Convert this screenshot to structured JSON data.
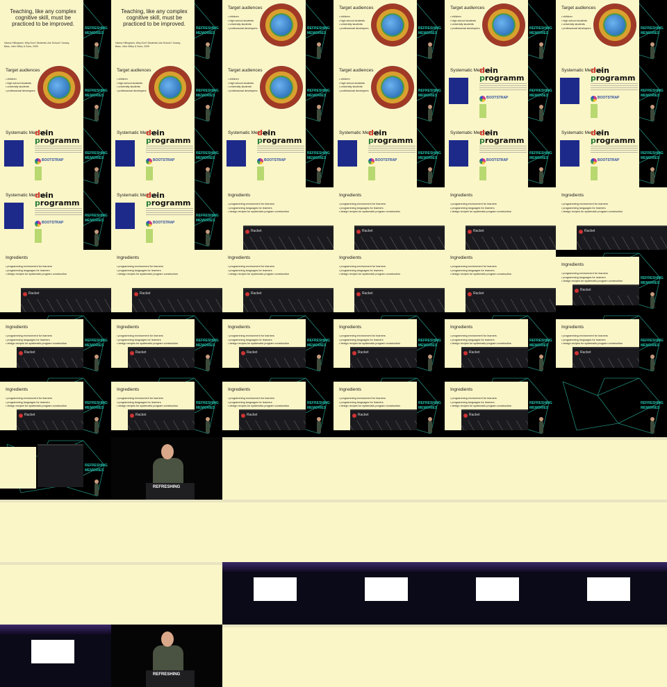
{
  "quote": {
    "text": "Teaching, like any complex cognitive skill, must be practiced to be improved.",
    "citation": "Hanna Hillingham, Why Don't Students Like School? Jossey-Bass, John Wiley & Sons, 2009"
  },
  "target": {
    "title": "Target audiences",
    "bullets": [
      "children",
      "high school students",
      "university students",
      "professional developers"
    ]
  },
  "methods": {
    "title": "Systematic Methods",
    "dein_1": "dein",
    "dein_2": "programm",
    "bootstrap": "BOOTSTRAP"
  },
  "ingredients": {
    "title": "Ingredients",
    "bullets": [
      "programming environment for learners",
      "programming languages for learners",
      "design recipes for systematic program construction"
    ],
    "racket_label": "Racket"
  },
  "brand": {
    "line1": "REFRESHING",
    "line2": "MEMORIES"
  },
  "podium_text": "REFRESHING",
  "colors": {
    "slide_bg": "#fbf6c8",
    "teal": "#23c4b0",
    "network": "#1f8a7a"
  },
  "tile_sequence": [
    "quote",
    "quote",
    "target",
    "target",
    "target",
    "target",
    "target",
    "target",
    "target",
    "target",
    "methods",
    "methods",
    "methods",
    "methods",
    "methods",
    "methods",
    "methods",
    "methods",
    "methods",
    "methods",
    "ingredients",
    "ingredients",
    "ingredients",
    "ingredients",
    "ingredients",
    "ingredients",
    "ingredients",
    "ingredients",
    "ingredients",
    "ingredients-small",
    "ingredients-small",
    "ingredients-small",
    "ingredients-small",
    "ingredients-small",
    "ingredients-small",
    "ingredients-small",
    "ingredients-small",
    "ingredients-small",
    "ingredients-small",
    "ingredients-small",
    "ingredients-small",
    "network",
    "desktop",
    "closeup",
    "doc",
    "doc",
    "doc",
    "doc",
    "doc",
    "doc",
    "doc",
    "doc",
    "doc",
    "doc",
    "doc",
    "doc",
    "stage",
    "stage",
    "stage",
    "stage",
    "stage",
    "closeup",
    "doc",
    "doc",
    "doc",
    "doc"
  ]
}
